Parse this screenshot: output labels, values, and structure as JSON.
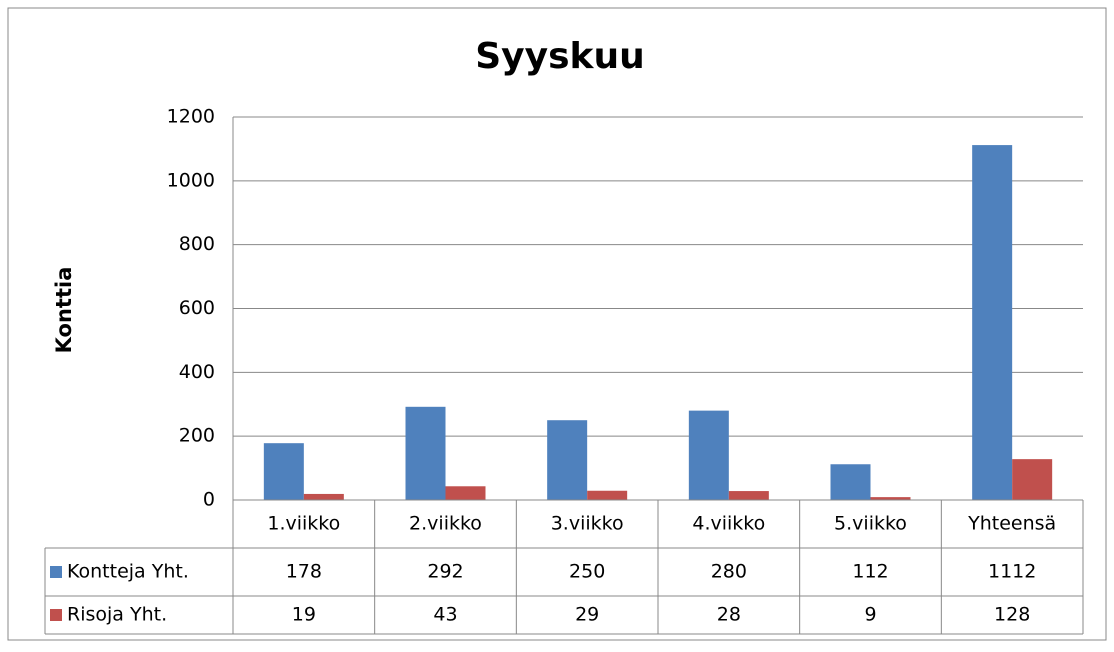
{
  "chart_data": {
    "type": "bar",
    "title": "Syyskuu",
    "y_label": "Konttia",
    "categories": [
      "1.viikko",
      "2.viikko",
      "3.viikko",
      "4.viikko",
      "5.viikko",
      "Yhteensä"
    ],
    "series": [
      {
        "name": "Kontteja Yht.",
        "color": "#4f81bd",
        "values": [
          178,
          292,
          250,
          280,
          112,
          1112
        ]
      },
      {
        "name": "Risoja Yht.",
        "color": "#c0504d",
        "values": [
          19,
          43,
          29,
          28,
          9,
          128
        ]
      }
    ],
    "ylim": [
      0,
      1200
    ],
    "yticks": [
      0,
      200,
      400,
      600,
      800,
      1000,
      1200
    ],
    "grid": true,
    "data_table": true
  }
}
